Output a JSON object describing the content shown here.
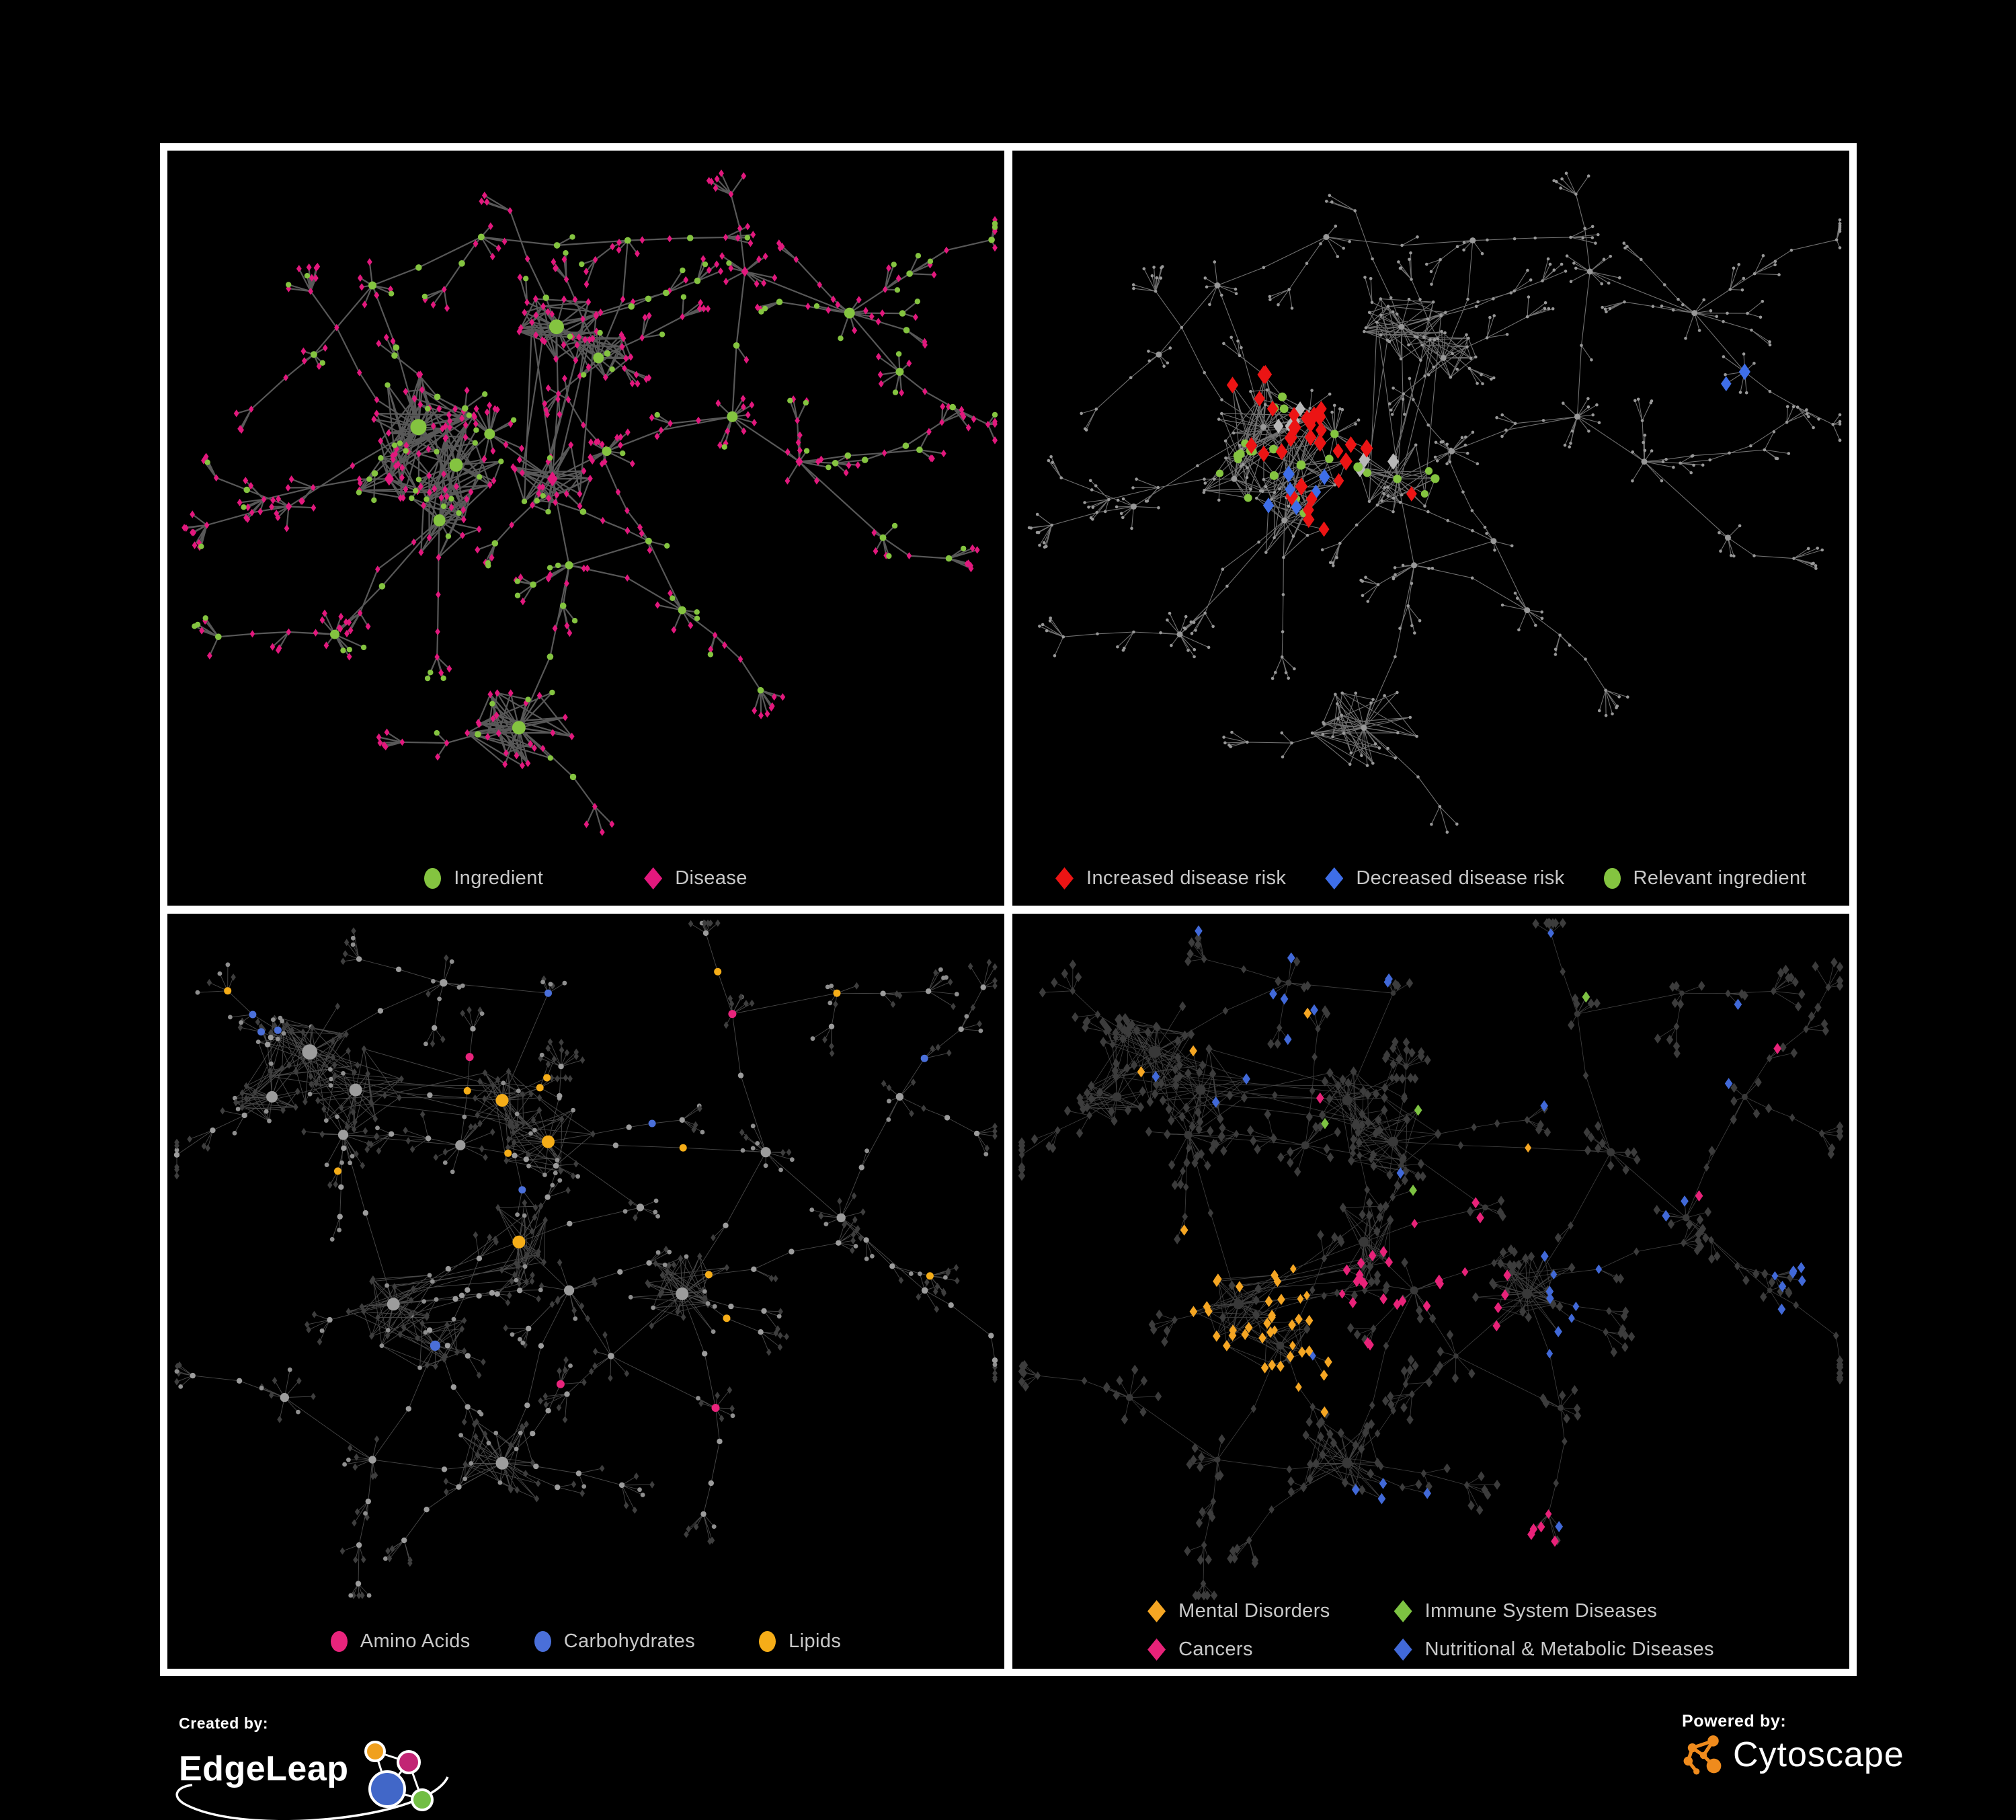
{
  "figure": {
    "background": "#000000",
    "frame_color": "#ffffff",
    "legend_text_color": "#c9c9c9"
  },
  "panels": [
    {
      "id": "ingredient-disease-network",
      "legend": [
        {
          "label": "Ingredient",
          "shape": "circle",
          "color": "#84C440"
        },
        {
          "label": "Disease",
          "shape": "diamond",
          "color": "#E2187D"
        }
      ],
      "edge_color": "#6E6E6E"
    },
    {
      "id": "disease-risk-network",
      "legend": [
        {
          "label": "Increased disease risk",
          "shape": "diamond",
          "color": "#EC1414"
        },
        {
          "label": "Decreased disease risk",
          "shape": "diamond",
          "color": "#3E6EE8"
        },
        {
          "label": "Relevant ingredient",
          "shape": "circle",
          "color": "#84C440"
        }
      ],
      "edge_color": "#8C8C8C",
      "muted_node_color": "#989898",
      "neutral_diamond_color": "#B8B8B8"
    },
    {
      "id": "ingredient-class-network",
      "legend": [
        {
          "label": "Amino Acids",
          "shape": "circle",
          "color": "#E8247C"
        },
        {
          "label": "Carbohydrates",
          "shape": "circle",
          "color": "#4A6FD9"
        },
        {
          "label": "Lipids",
          "shape": "circle",
          "color": "#F5AD18"
        }
      ],
      "edge_color": "#ADADAD",
      "gray_node_color": "#9C9C9C",
      "disease_node_color": "#3E3E3E"
    },
    {
      "id": "disease-category-network",
      "legend": [
        {
          "label": "Mental Disorders",
          "shape": "diamond",
          "color": "#F5A623"
        },
        {
          "label": "Immune System Diseases",
          "shape": "diamond",
          "color": "#7DC242"
        },
        {
          "label": "Cancers",
          "shape": "diamond",
          "color": "#E82279"
        },
        {
          "label": "Nutritional & Metabolic Diseases",
          "shape": "diamond",
          "color": "#4169D8"
        }
      ],
      "edge_color": "#C9C9C9",
      "dim_node_color": "#3C3C3C"
    }
  ],
  "footer": {
    "created_by": {
      "label": "Created by:",
      "brand": "EdgeLeap",
      "logo_colors": [
        "#F0A01E",
        "#C22574",
        "#4167C8",
        "#72BE44"
      ]
    },
    "powered_by": {
      "label": "Powered by:",
      "brand": "Cytoscape",
      "logo_color": "#EF8B1D"
    }
  }
}
